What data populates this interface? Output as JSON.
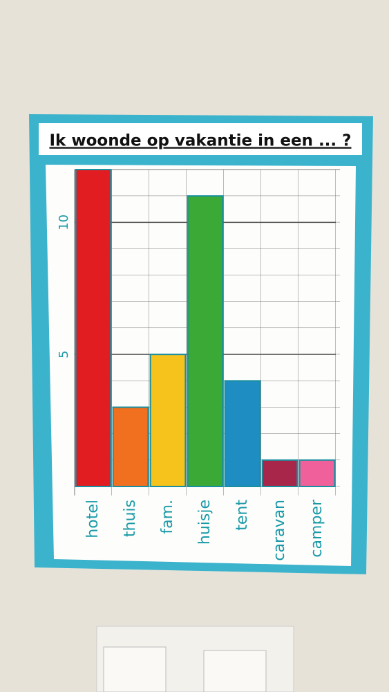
{
  "chart_data": {
    "type": "bar",
    "title": "Ik woonde op vakantie in een ... ?",
    "categories": [
      "hotel",
      "thuis",
      "fam.",
      "huisje",
      "tent",
      "caravan",
      "camper"
    ],
    "values": [
      12,
      3,
      5,
      11,
      4,
      1,
      1
    ],
    "colors": [
      "#e21d22",
      "#f0701f",
      "#f6c21c",
      "#3aa935",
      "#1e8ec2",
      "#a8264a",
      "#f0609a"
    ],
    "ylim": [
      0,
      12
    ],
    "yticks": [
      5,
      10
    ],
    "grid": true
  }
}
